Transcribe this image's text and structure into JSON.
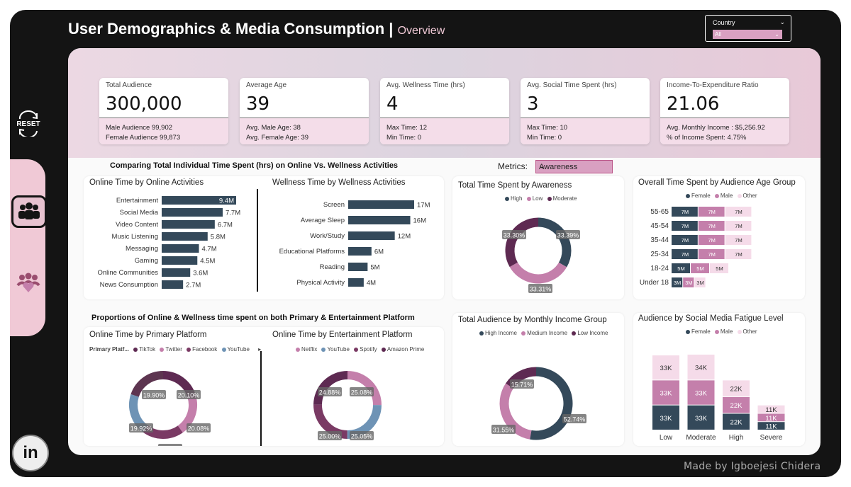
{
  "header": {
    "title": "User Demographics & Media Consumption |",
    "subtitle": "Overview"
  },
  "country_slicer": {
    "label": "Country",
    "value": "All"
  },
  "sidebar": {
    "reset_label": "RESET"
  },
  "kpis": [
    {
      "title": "Total Audience",
      "value": "300,000",
      "line1": "Male Audience 99,902",
      "line2": "Female Audience 99,873"
    },
    {
      "title": "Average Age",
      "value": "39",
      "line1": "Avg. Male Age: 38",
      "line2": "Avg. Female Age: 39"
    },
    {
      "title": "Avg. Wellness Time (hrs)",
      "value": "4",
      "line1": "Max Time: 12",
      "line2": "Min Time: 0"
    },
    {
      "title": "Avg. Social Time Spent (hrs)",
      "value": "3",
      "line1": "Max Time: 10",
      "line2": "Min Time: 0"
    },
    {
      "title": "Income-To-Expenditure Ratio",
      "value": "21.06",
      "line1": "Avg. Monthly Income : $5,256.92",
      "line2": "% of Income Spent: 4.75%"
    }
  ],
  "sections": {
    "compare_title": "Comparing Total Individual Time Spent (hrs) on Online  Vs. Wellness Activities",
    "proportions_title": "Proportions of Online & Wellness time spent on both Primary & Entertainment Platform"
  },
  "metrics": {
    "label": "Metrics:",
    "value": "Awareness"
  },
  "colors": {
    "navy": "#34495a",
    "mauve": "#c47fab",
    "plum": "#5e2a52",
    "light_pink": "#f5dbe9",
    "steel": "#6e93b5",
    "accent_pink": "#d9a0c1"
  },
  "credit": "Made by Igboejesi Chidera",
  "chart_data": [
    {
      "id": "online_time",
      "type": "bar",
      "title": "Online Time by Online Activities",
      "categories": [
        "Entertainment",
        "Social Media",
        "Video Content",
        "Music Listening",
        "Messaging",
        "Gaming",
        "Online Communities",
        "News Consumption"
      ],
      "values": [
        9.4,
        7.7,
        6.7,
        5.8,
        4.7,
        4.5,
        3.6,
        2.7
      ],
      "labels": [
        "9.4M",
        "7.7M",
        "6.7M",
        "5.8M",
        "4.7M",
        "4.5M",
        "3.6M",
        "2.7M"
      ]
    },
    {
      "id": "wellness_time",
      "type": "bar",
      "title": "Wellness Time by Wellness Activities",
      "categories": [
        "Screen",
        "Average Sleep",
        "Work/Study",
        "Educational Platforms",
        "Reading",
        "Physical Activity"
      ],
      "values": [
        17,
        16,
        12,
        6,
        5,
        4
      ],
      "labels": [
        "17M",
        "16M",
        "12M",
        "6M",
        "5M",
        "4M"
      ]
    },
    {
      "id": "awareness",
      "type": "pie",
      "title": "Total Time Spent by Awareness",
      "series": [
        {
          "name": "High",
          "value": 33.39,
          "label": "33.39%"
        },
        {
          "name": "Low",
          "value": 33.31,
          "label": "33.31%"
        },
        {
          "name": "Moderate",
          "value": 33.3,
          "label": "33.30%"
        }
      ]
    },
    {
      "id": "age_group",
      "type": "bar",
      "title": "Overall Time Spent by Audience Age Group",
      "legend": [
        "Female",
        "Male",
        "Other"
      ],
      "categories": [
        "55-65",
        "45-54",
        "35-44",
        "25-34",
        "18-24",
        "Under 18"
      ],
      "series": [
        {
          "name": "Female",
          "values": [
            7,
            7,
            7,
            7,
            5,
            3
          ],
          "labels": [
            "7M",
            "7M",
            "7M",
            "7M",
            "5M",
            "3M"
          ]
        },
        {
          "name": "Male",
          "values": [
            7,
            7,
            7,
            7,
            5,
            3
          ],
          "labels": [
            "7M",
            "7M",
            "7M",
            "7M",
            "5M",
            "3M"
          ]
        },
        {
          "name": "Other",
          "values": [
            7,
            7,
            7,
            7,
            5,
            3
          ],
          "labels": [
            "7M",
            "7M",
            "7M",
            "7M",
            "5M",
            "3M"
          ]
        }
      ]
    },
    {
      "id": "primary_platform",
      "type": "pie",
      "title": "Online Time by Primary Platform",
      "legend_title": "Primary Platf...",
      "series": [
        {
          "name": "TikTok",
          "value": 20.1,
          "label": "20.10%"
        },
        {
          "name": "Twitter",
          "value": 20.08,
          "label": "20.08%"
        },
        {
          "name": "Facebook",
          "value": 20.0,
          "label": "20.00%"
        },
        {
          "name": "YouTube",
          "value": 19.92,
          "label": "19.92%"
        },
        {
          "name": "",
          "value": 19.9,
          "label": "19.90%"
        }
      ]
    },
    {
      "id": "entertainment_platform",
      "type": "pie",
      "title": "Online Time by Entertainment Platform",
      "series": [
        {
          "name": "Netflix",
          "value": 25.08,
          "label": "25.08%"
        },
        {
          "name": "YouTube",
          "value": 25.05,
          "label": "25.05%"
        },
        {
          "name": "Spotify",
          "value": 25.0,
          "label": "25.00%"
        },
        {
          "name": "Amazon Prime",
          "value": 24.88,
          "label": "24.88%"
        }
      ]
    },
    {
      "id": "income_group",
      "type": "pie",
      "title": "Total Audience by Monthly Income Group",
      "series": [
        {
          "name": "High Income",
          "value": 52.74,
          "label": "52.74%"
        },
        {
          "name": "Medium Income",
          "value": 31.55,
          "label": "31.55%"
        },
        {
          "name": "Low Income",
          "value": 15.71,
          "label": "15.71%"
        }
      ]
    },
    {
      "id": "fatigue",
      "type": "bar",
      "title": "Audience by Social Media Fatigue Level",
      "legend": [
        "Female",
        "Male",
        "Other"
      ],
      "categories": [
        "Low",
        "Moderate",
        "High",
        "Severe"
      ],
      "series": [
        {
          "name": "Female",
          "values": [
            33,
            33,
            22,
            11
          ],
          "labels": [
            "33K",
            "33K",
            "22K",
            "11K"
          ]
        },
        {
          "name": "Male",
          "values": [
            33,
            33,
            22,
            11
          ],
          "labels": [
            "33K",
            "33K",
            "22K",
            "11K"
          ]
        },
        {
          "name": "Other",
          "values": [
            33,
            34,
            22,
            11
          ],
          "labels": [
            "33K",
            "34K",
            "22K",
            "11K"
          ]
        }
      ]
    }
  ]
}
